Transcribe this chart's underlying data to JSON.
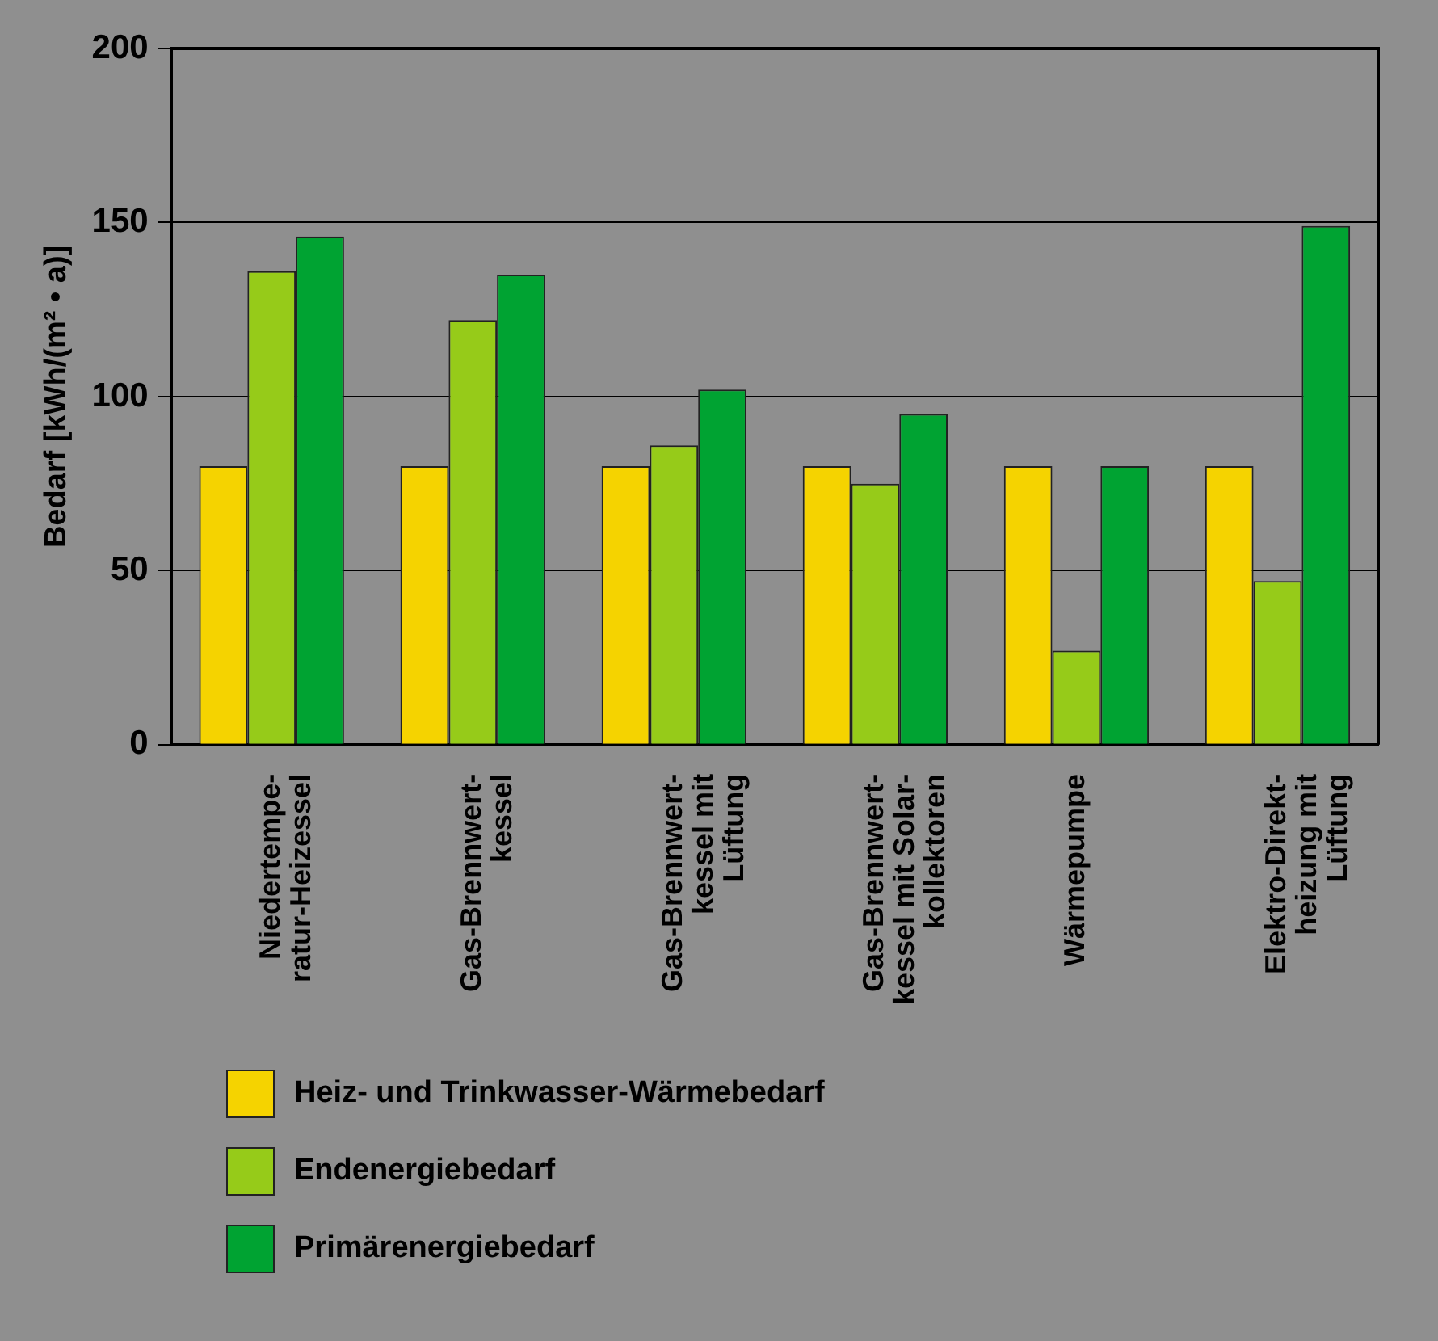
{
  "chart_data": {
    "type": "bar",
    "ylabel": "Bedarf [kWh/(m² • a)]",
    "categories": [
      "Niedertempe-\nratur-Heizessel",
      "Gas-Brennwert-\nkessel",
      "Gas-Brennwert-\nkessel mit\nLüftung",
      "Gas-Brennwert-\nkessel mit Solar-\nkollektoren",
      "Wärmepumpe",
      "Elektro-Direkt-\nheizung mit\nLüftung"
    ],
    "series": [
      {
        "name": "Heiz- und Trinkwasser-Wärmebedarf",
        "color": "#f5d300",
        "values": [
          80,
          80,
          80,
          80,
          80,
          80
        ]
      },
      {
        "name": "Endenergiebedarf",
        "color": "#96cb19",
        "values": [
          136,
          122,
          86,
          75,
          27,
          47
        ]
      },
      {
        "name": "Primärenergiebedarf",
        "color": "#00a332",
        "values": [
          146,
          135,
          102,
          95,
          80,
          149
        ]
      }
    ],
    "ylim": [
      0,
      200
    ],
    "yticks": [
      0,
      50,
      100,
      150,
      200
    ],
    "grid": "y",
    "legend": "bottom left"
  }
}
